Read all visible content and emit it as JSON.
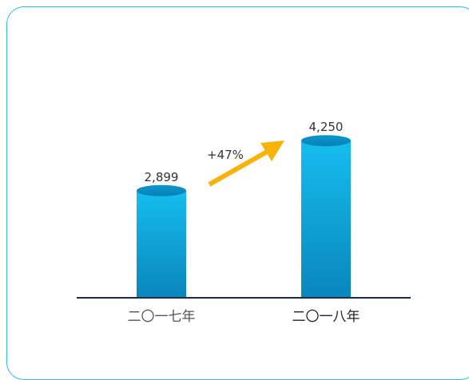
{
  "chart_data": {
    "type": "bar",
    "categories": [
      "二〇一七年",
      "二〇一八年"
    ],
    "values": [
      2899,
      4250
    ],
    "value_labels": [
      "2,899",
      "4,250"
    ],
    "annotation": "+47%",
    "ylim": [
      0,
      4600
    ],
    "grid": false,
    "colors": {
      "bar_top": "#12b4e6",
      "bar_bottom": "#0e88bd",
      "arrow": "#f6b40b",
      "axis": "#1c2b4a",
      "frame": "#2fb6e6"
    }
  }
}
